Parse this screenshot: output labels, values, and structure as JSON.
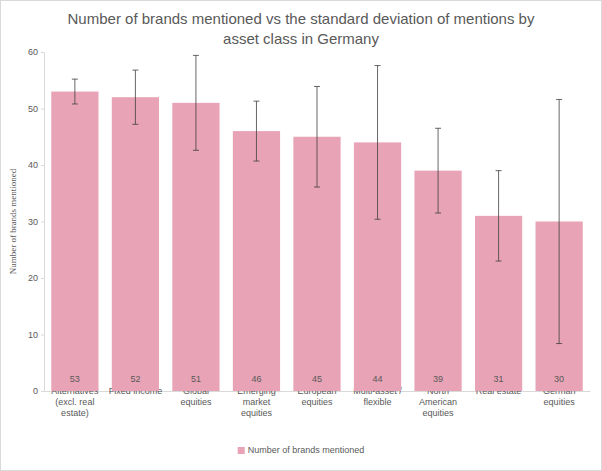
{
  "chart_data": {
    "type": "bar",
    "title": "Number of brands mentioned vs the standard deviation of mentions by asset class in Germany",
    "y_label": "Number of brands mentioned",
    "categories": [
      "Alternatives (excl. real estate)",
      "Fixed income",
      "Global equities",
      "Emerging market equities",
      "European equities",
      "Multi-asset / flexible",
      "North American equities",
      "Real estate",
      "German equities"
    ],
    "series": [
      {
        "name": "Number of brands mentioned",
        "color": "#e8a3b6",
        "values": [
          53,
          52,
          51,
          46,
          45,
          44,
          39,
          31,
          30
        ],
        "error": [
          2.2,
          4.8,
          8.4,
          5.3,
          8.9,
          13.6,
          7.5,
          8.0,
          21.6
        ]
      }
    ],
    "ylim": [
      0,
      60
    ],
    "yticks": [
      0,
      10,
      20,
      30,
      40,
      50,
      60
    ],
    "grid": false,
    "data_labels": true,
    "legend": "bottom"
  }
}
